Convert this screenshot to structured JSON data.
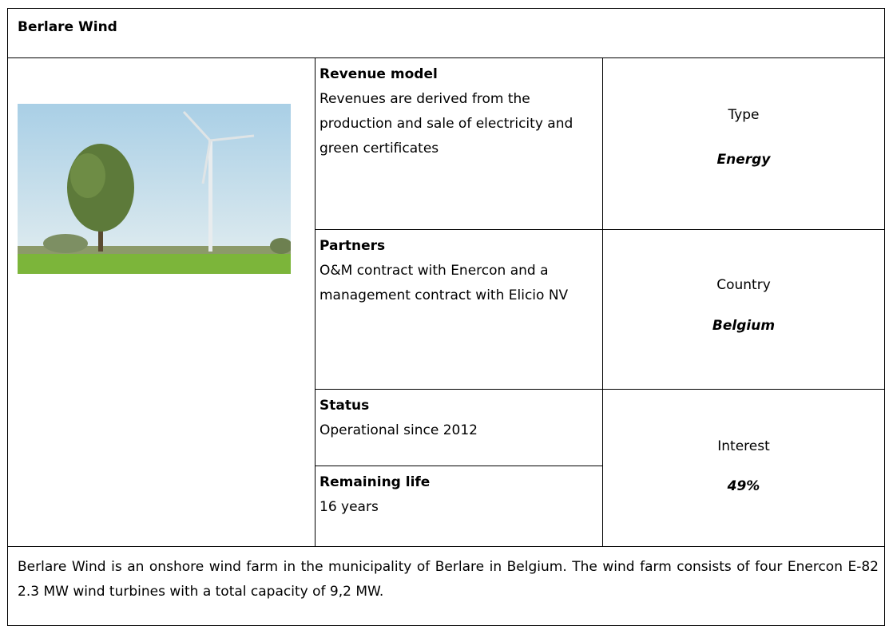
{
  "title": "Berlare Wind",
  "revenue_model": {
    "label": "Revenue model",
    "text": "Revenues are derived from the production and sale of electricity and green certificates"
  },
  "partners": {
    "label": "Partners",
    "text": "O&M contract with Enercon and a management contract with Elicio NV"
  },
  "status": {
    "label": "Status",
    "text": "Operational since 2012"
  },
  "remaining_life": {
    "label": "Remaining life",
    "text": "16 years"
  },
  "type": {
    "label": "Type",
    "value": "Energy"
  },
  "country": {
    "label": "Country",
    "value": "Belgium"
  },
  "interest": {
    "label": "Interest",
    "value": "49%"
  },
  "description": "Berlare Wind is an onshore wind farm in the municipality of Berlare in Belgium. The wind farm consists of four Enercon E-82 2.3 MW wind turbines with a total capacity of 9,2 MW."
}
